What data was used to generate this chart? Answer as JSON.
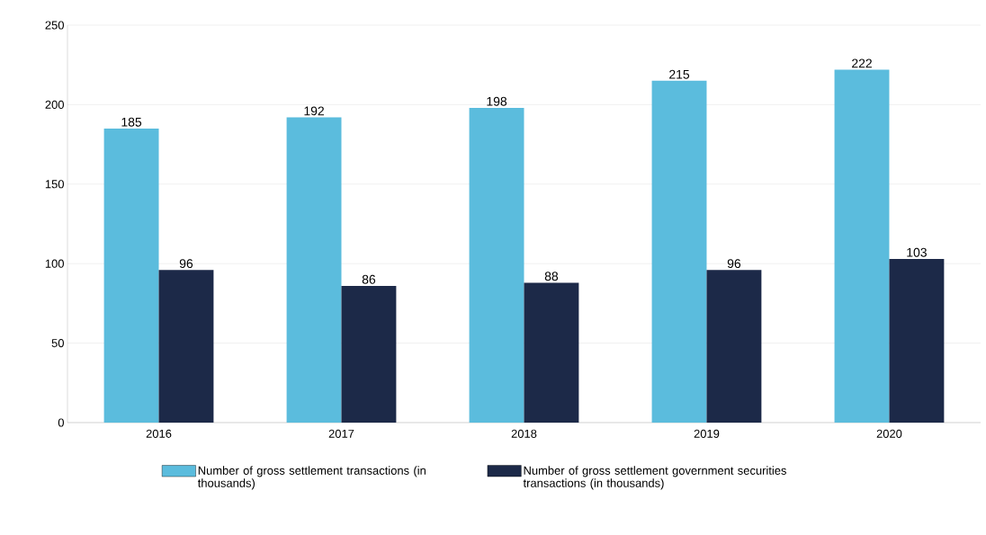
{
  "chart_data": {
    "type": "bar",
    "categories": [
      "2016",
      "2017",
      "2018",
      "2019",
      "2020"
    ],
    "series": [
      {
        "name": "Number of gross settlement transactions (in thousands)",
        "color": "#5bbcdd",
        "values": [
          185,
          192,
          198,
          215,
          222
        ]
      },
      {
        "name": "Number of gross settlement government securities transactions (in thousands)",
        "color": "#1c2948",
        "values": [
          96,
          86,
          88,
          96,
          103
        ]
      }
    ],
    "ylim": [
      0,
      250
    ],
    "yticks": [
      0,
      50,
      100,
      150,
      200,
      250
    ],
    "grid": "y",
    "legend": "bottom",
    "data_labels": true
  }
}
